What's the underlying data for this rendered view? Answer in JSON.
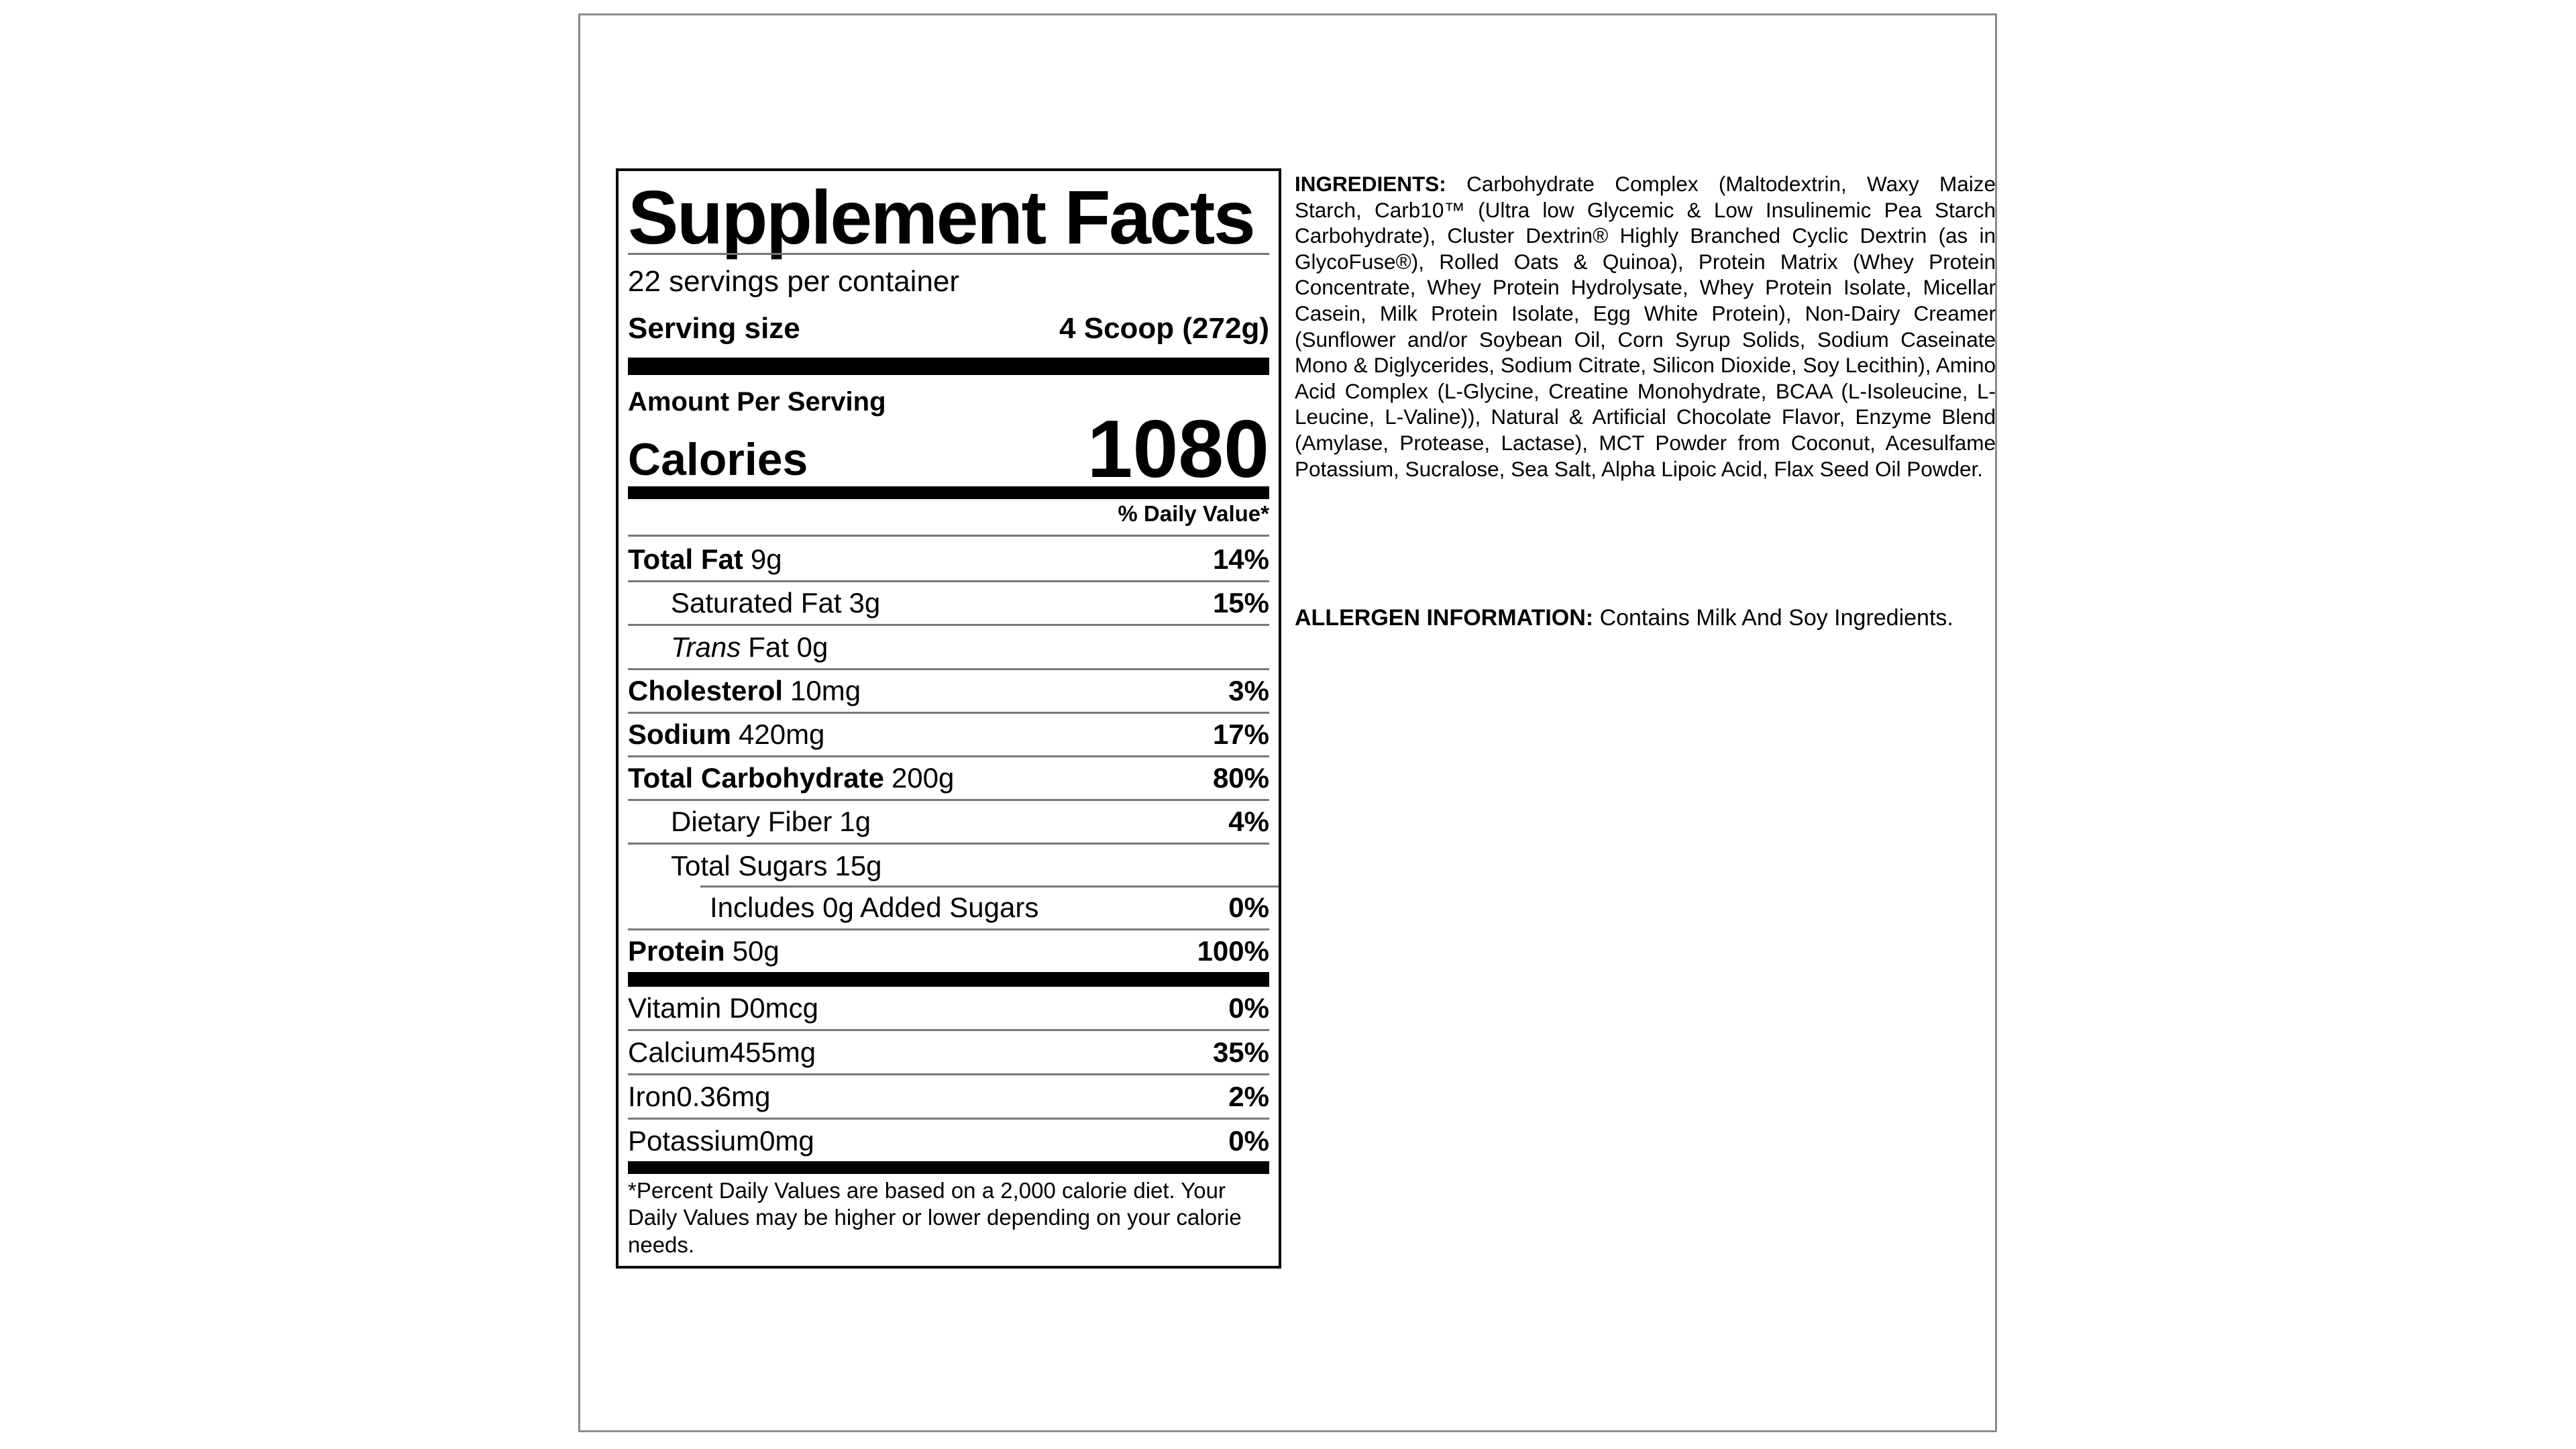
{
  "supplement": {
    "title": "Supplement Facts",
    "servings_per_container": "22 servings per container",
    "serving_size_label": "Serving size",
    "serving_size_value": "4 Scoop (272g)",
    "amount_per_serving": "Amount Per Serving",
    "calories_label": "Calories",
    "calories_value": "1080",
    "daily_value_header": "% Daily Value*",
    "rows": [
      {
        "name": "Total Fat",
        "amount": "9g",
        "dv": "14%"
      },
      {
        "name": "Saturated Fat",
        "amount": "3g",
        "dv": "15%"
      },
      {
        "name": "Trans",
        "amount": "Fat 0g",
        "dv": ""
      },
      {
        "name": "Cholesterol",
        "amount": "10mg",
        "dv": "3%"
      },
      {
        "name": "Sodium",
        "amount": "420mg",
        "dv": "17%"
      },
      {
        "name": "Total Carbohydrate",
        "amount": "200g",
        "dv": "80%"
      },
      {
        "name": "Dietary Fiber",
        "amount": "1g",
        "dv": "4%"
      },
      {
        "name": "Total Sugars",
        "amount": "15g",
        "dv": ""
      },
      {
        "name": "Includes 0g Added Sugars",
        "amount": "",
        "dv": "0%"
      },
      {
        "name": "Protein",
        "amount": "50g",
        "dv": "100%"
      }
    ],
    "vitamins": [
      {
        "name": "Vitamin D",
        "amount": "0mcg",
        "dv": "0%"
      },
      {
        "name": "Calcium",
        "amount": "455mg",
        "dv": "35%"
      },
      {
        "name": "Iron",
        "amount": "0.36mg",
        "dv": "2%"
      },
      {
        "name": "Potassium",
        "amount": "0mg",
        "dv": "0%"
      }
    ],
    "footnote": "*Percent Daily Values are based on a 2,000 calorie diet. Your Daily Values may be higher or lower depending on your calorie needs."
  },
  "ingredients": {
    "label": "INGREDIENTS:",
    "text": "Carbohydrate Complex (Maltodextrin, Waxy Maize Starch, Carb10™ (Ultra low Glycemic & Low Insulinemic Pea Starch Carbohydrate), Cluster Dextrin® Highly Branched Cyclic Dextrin (as in GlycoFuse®), Rolled Oats & Quinoa), Protein Matrix (Whey Protein Concentrate, Whey Protein Hydrolysate, Whey Protein Isolate, Micellar Casein, Milk Protein Isolate, Egg White Protein), Non-Dairy Creamer (Sunflower and/or Soybean Oil, Corn Syrup Solids, Sodium Caseinate Mono & Diglycerides, Sodium Citrate, Silicon Dioxide, Soy Lecithin), Amino Acid Complex (L-Glycine, Creatine Monohydrate, BCAA (L-Isoleucine, L-Leucine, L-Valine)), Natural & Artificial Chocolate Flavor, Enzyme Blend (Amylase, Protease, Lactase), MCT Powder from Coconut, Acesulfame Potassium, Sucralose, Sea Salt, Alpha Lipoic Acid, Flax Seed Oil Powder."
  },
  "allergen": {
    "label": "ALLERGEN INFORMATION:",
    "text": "Contains Milk And Soy Ingredients."
  },
  "colors": {
    "text": "#000000",
    "hairline": "#777777",
    "thick_bar": "#000000",
    "page_border": "#8c8c8c"
  }
}
